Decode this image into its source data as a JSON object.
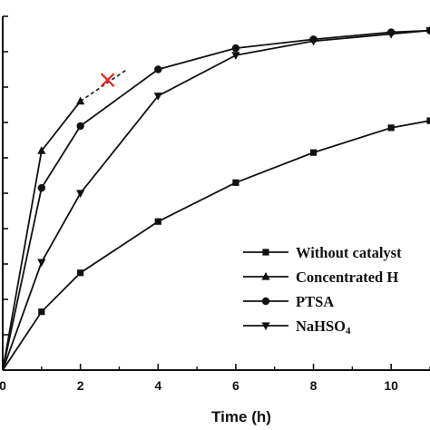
{
  "chart_data": {
    "type": "line",
    "xlabel": "Time (h)",
    "ylabel": "",
    "xlim": [
      0,
      11
    ],
    "ylim": [
      0,
      100
    ],
    "x_ticks": [
      0,
      2,
      4,
      6,
      8,
      10
    ],
    "series": [
      {
        "name": "Without catalyst",
        "marker": "square",
        "x": [
          0,
          1,
          2,
          4,
          6,
          8,
          10,
          11
        ],
        "y": [
          0,
          16.5,
          27.5,
          42,
          53,
          61.5,
          68.5,
          70.5
        ]
      },
      {
        "name": "Concentrated H",
        "marker": "triangle-up",
        "x": [
          0,
          1,
          2
        ],
        "y": [
          0,
          62,
          76
        ]
      },
      {
        "name": "PTSA",
        "marker": "circle",
        "x": [
          0,
          1,
          2,
          4,
          6,
          8,
          10,
          11
        ],
        "y": [
          0,
          51.5,
          69,
          85,
          91,
          93.5,
          95.5,
          96
        ]
      },
      {
        "name": "NaHSO₄",
        "marker": "triangle-down",
        "x": [
          0,
          1,
          2,
          4,
          6,
          8,
          10,
          11
        ],
        "y": [
          0,
          30.5,
          50,
          77.5,
          89,
          93,
          95,
          96
        ]
      }
    ],
    "extension": {
      "x": [
        2,
        3.2
      ],
      "y": [
        76,
        85
      ],
      "style": "dashed",
      "end_mark": {
        "x": 2.7,
        "y": 82,
        "symbol": "x",
        "color": "#e8251f"
      }
    },
    "legend": "lower-right",
    "grid": false
  }
}
